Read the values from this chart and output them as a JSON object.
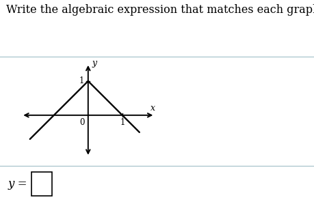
{
  "title_text": "Write the algebraic expression that matches each graph:",
  "title_fontsize": 11.5,
  "title_color": "#000000",
  "background_color": "#ffffff",
  "x_axis_label": "x",
  "y_axis_label": "y",
  "tick_label_0": "0",
  "tick_label_1x": "1",
  "tick_label_1y": "1",
  "answer_label": "y =",
  "line_color": "#000000",
  "separator_color": "#a0bfc8",
  "v_peak_x": 0,
  "v_peak_y": 1,
  "v_extend_left_x": -1.7,
  "v_extend_left_y": -0.7,
  "v_extend_right_x": 1.5,
  "v_extend_right_y": -0.5,
  "x_axis_min": -2.0,
  "x_axis_max": 2.0,
  "y_axis_min": -1.3,
  "y_axis_max": 1.6
}
